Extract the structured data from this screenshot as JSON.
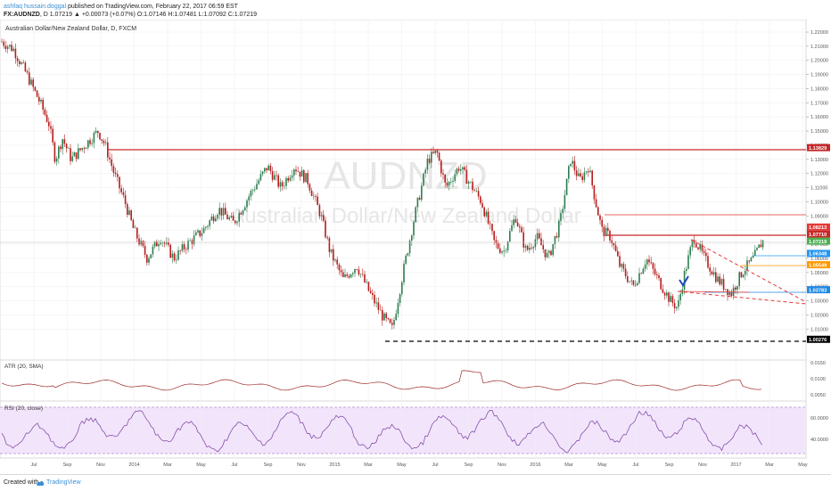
{
  "header": {
    "author": "ashfaq hussain.doggal",
    "published": " published on TradingView.com, February 22, 2017 06:59 EST",
    "symbol": "FX:AUDNZD",
    "quote": ", D 1.07219 ▲ +0.00073 (+0.07%) O:1.07146 H:1.07481 L:1.07092 C:1.07219"
  },
  "chart": {
    "title": "Australian Dollar/New Zealand Dollar, D, FXCM",
    "watermark_symbol": "AUDNZD",
    "watermark_name": "Australian Dollar/New Zealand Dollar",
    "price_ticks": [
      "1.22000",
      "1.21000",
      "1.20000",
      "1.19000",
      "1.18000",
      "1.17000",
      "1.16000",
      "1.15000",
      "1.14000",
      "1.13000",
      "1.12000",
      "1.11000",
      "1.10000",
      "1.09000",
      "1.08000",
      "1.07000",
      "1.06000",
      "1.05000",
      "1.04000",
      "1.03000",
      "1.02000",
      "1.01000"
    ],
    "price_labels": [
      {
        "value": "1.13829",
        "color": "#c62828"
      },
      {
        "value": "1.08213",
        "color": "#e53935"
      },
      {
        "value": "1.07710",
        "color": "#c62828"
      },
      {
        "value": "1.07219",
        "color": "#4caf50"
      },
      {
        "value": "1.06348",
        "color": "#2196f3"
      },
      {
        "value": "1.05549",
        "color": "#ff9800"
      },
      {
        "value": "1.03783",
        "color": "#1e88e5"
      },
      {
        "value": "1.00276",
        "color": "#000000"
      }
    ],
    "atr_label": "ATR (20, SMA)",
    "atr_ticks": [
      "0.0150",
      "0.0100",
      "0.0050"
    ],
    "rsi_label": "RSI (20, close)",
    "rsi_ticks": [
      "60.0000",
      "40.0000"
    ],
    "x_ticks": [
      "Jul",
      "Sep",
      "Nov",
      "2014",
      "Mar",
      "May",
      "Jul",
      "Sep",
      "Nov",
      "2015",
      "Mar",
      "May",
      "Jul",
      "Sep",
      "Nov",
      "2016",
      "Mar",
      "May",
      "Jul",
      "Sep",
      "Nov",
      "2017",
      "Mar",
      "May"
    ],
    "colors": {
      "up": "#2e7d4f",
      "down": "#b71c1c",
      "atr": "#9e2a2a",
      "rsi": "#7b3fa0",
      "rsi_band": "#f1e4fb"
    }
  },
  "footer": {
    "created": "Created with",
    "brand": "TradingView"
  }
}
